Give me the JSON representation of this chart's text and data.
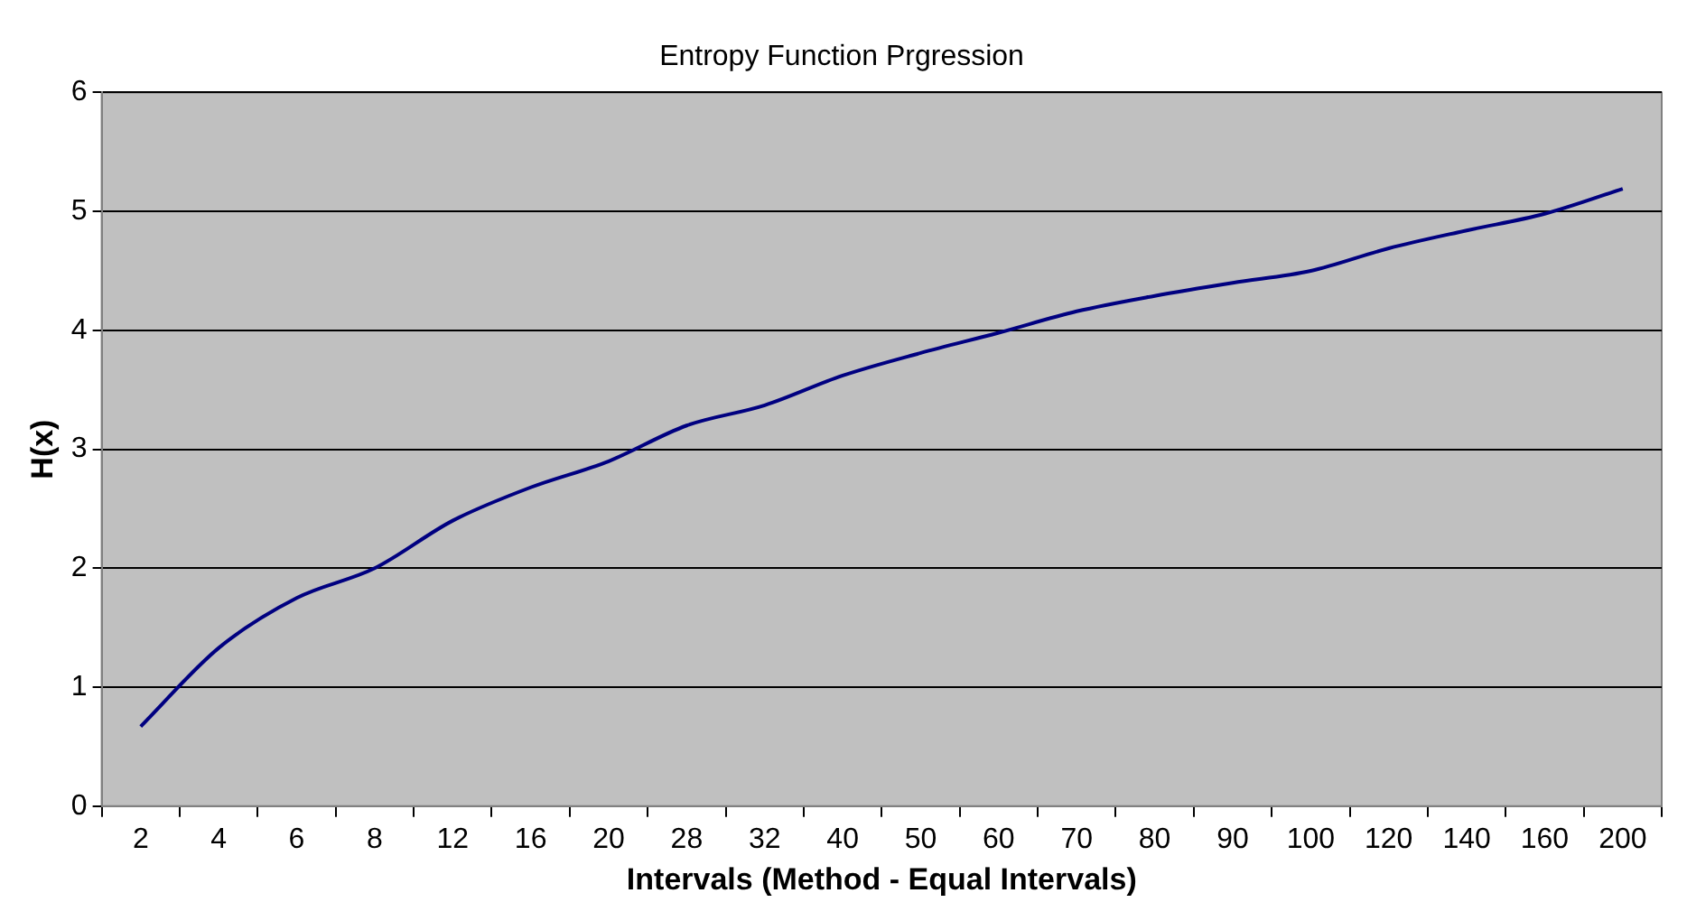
{
  "chart_data": {
    "type": "line",
    "title": "Entropy Function Prgression",
    "xlabel": "Intervals (Method - Equal Intervals)",
    "ylabel": "H(x)",
    "categories": [
      "2",
      "4",
      "6",
      "8",
      "12",
      "16",
      "20",
      "28",
      "32",
      "40",
      "50",
      "60",
      "70",
      "80",
      "90",
      "100",
      "120",
      "140",
      "160",
      "200"
    ],
    "series": [
      {
        "color": "#000080",
        "values": [
          0.67,
          1.33,
          1.75,
          2.0,
          2.4,
          2.68,
          2.9,
          3.2,
          3.37,
          3.62,
          3.81,
          3.98,
          4.16,
          4.29,
          4.4,
          4.5,
          4.69,
          4.84,
          4.98,
          5.19
        ]
      }
    ],
    "ylim": [
      0,
      6
    ],
    "yticks": [
      0,
      1,
      2,
      3,
      4,
      5,
      6
    ],
    "grid": "y",
    "legend": false,
    "marker": "none",
    "line_style": "solid"
  }
}
